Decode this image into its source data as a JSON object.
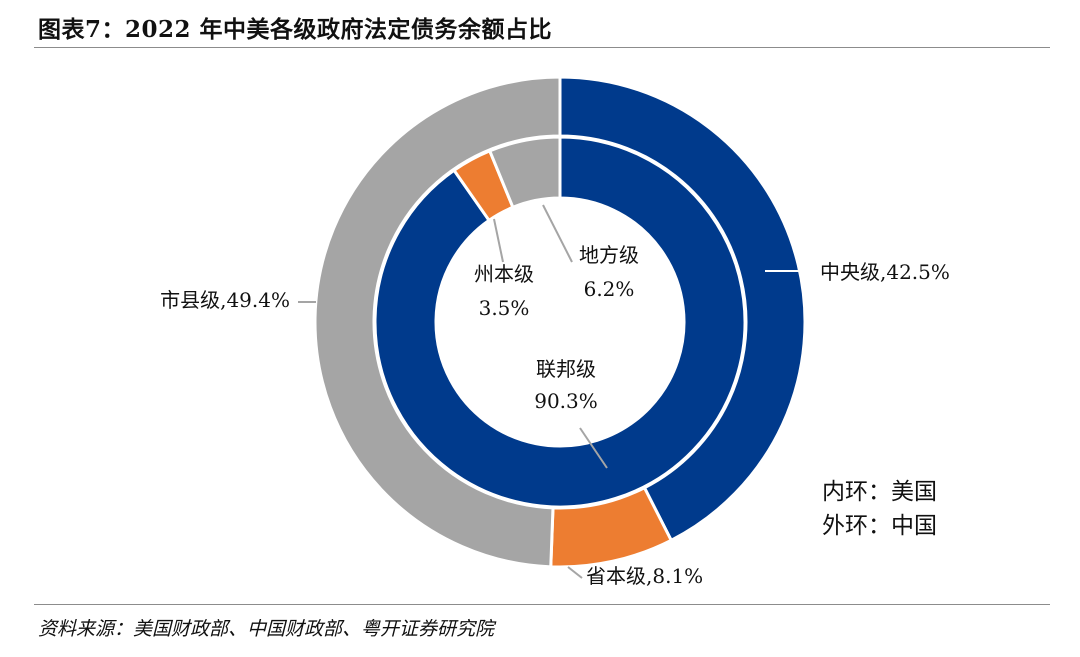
{
  "title": "图表7：2022 年中美各级政府法定债务余额占比",
  "source": "资料来源：美国财政部、中国财政部、粤开证券研究院",
  "chart_data": [
    {
      "type": "pie",
      "subtype": "donut-outer-ring",
      "country": "中国",
      "ring": "外环",
      "categories": [
        "中央级",
        "省本级",
        "市县级"
      ],
      "values": [
        42.5,
        8.1,
        49.4
      ],
      "unit": "%",
      "labels": [
        "中央级,42.5%",
        "省本级,8.1%",
        "市县级,49.4%"
      ],
      "colors": [
        "#003a8c",
        "#ed7d31",
        "#a5a5a5"
      ]
    },
    {
      "type": "pie",
      "subtype": "donut-inner-ring",
      "country": "美国",
      "ring": "内环",
      "categories": [
        "联邦级",
        "州本级",
        "地方级"
      ],
      "values": [
        90.3,
        3.5,
        6.2
      ],
      "unit": "%",
      "labels": [
        {
          "name": "联邦级",
          "value": "90.3%"
        },
        {
          "name": "州本级",
          "value": "3.5%"
        },
        {
          "name": "地方级",
          "value": "6.2%"
        }
      ],
      "colors": [
        "#003a8c",
        "#ed7d31",
        "#a5a5a5"
      ]
    }
  ],
  "legend": [
    "内环：美国",
    "外环：中国"
  ]
}
